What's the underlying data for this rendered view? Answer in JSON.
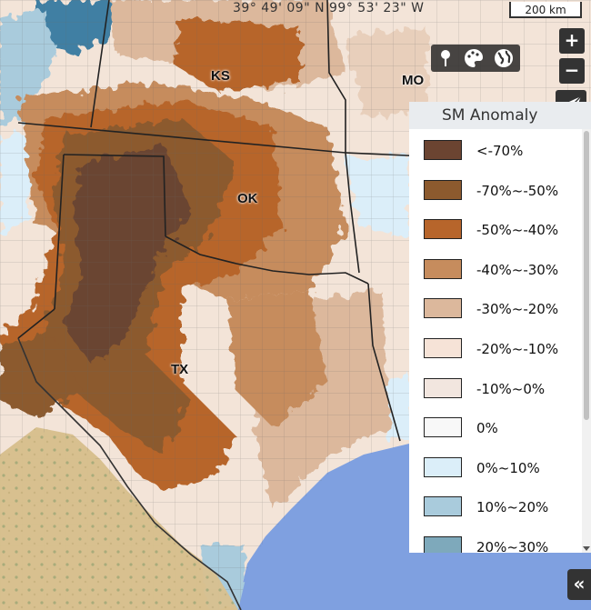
{
  "coordinates": "39° 49' 09\" N 99° 53' 23\" W",
  "scale_bar": "200 km",
  "state_labels": {
    "ks": "KS",
    "mo": "MO",
    "ok": "OK",
    "tx": "TX"
  },
  "zoom": {
    "in": "+",
    "out": "−"
  },
  "toolbar": {
    "icons": [
      "map-pin-icon",
      "palette-icon",
      "globe-icon"
    ]
  },
  "legend": {
    "title": "SM Anomaly",
    "items": [
      {
        "label": "<-70%",
        "color": "#6b4431"
      },
      {
        "label": "-70%~-50%",
        "color": "#8c5a2e"
      },
      {
        "label": "-50%~-40%",
        "color": "#b7652b"
      },
      {
        "label": "-40%~-30%",
        "color": "#c68c5d"
      },
      {
        "label": "-30%~-20%",
        "color": "#dcb89c"
      },
      {
        "label": "-20%~-10%",
        "color": "#f6e3d7"
      },
      {
        "label": "-10%~0%",
        "color": "#f2e6df"
      },
      {
        "label": "0%",
        "color": "#f8f8f8"
      },
      {
        "label": "0%~10%",
        "color": "#dbeef9"
      },
      {
        "label": "10%~20%",
        "color": "#a9cbdc"
      },
      {
        "label": "20%~30%",
        "color": "#7ea9bb"
      }
    ]
  },
  "collapse_label": "«"
}
